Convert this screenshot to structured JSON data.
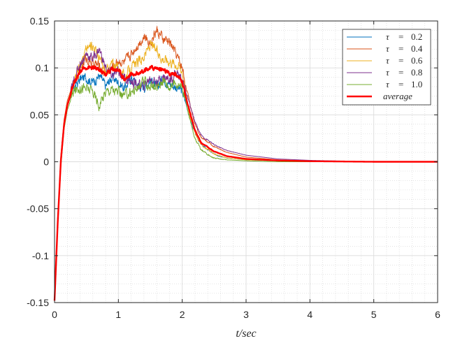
{
  "chart_data": {
    "type": "line",
    "title": "",
    "xlabel": "t/sec",
    "ylabel": "",
    "xlim": [
      0,
      6
    ],
    "ylim": [
      -0.15,
      0.15
    ],
    "xticks": [
      0,
      1,
      2,
      3,
      4,
      5,
      6
    ],
    "xtick_labels": [
      "0",
      "1",
      "2",
      "3",
      "4",
      "5",
      "6"
    ],
    "yticks": [
      -0.15,
      -0.1,
      -0.05,
      0,
      0.05,
      0.1,
      0.15
    ],
    "ytick_labels": [
      "-0.15",
      "-0.1",
      "-0.05",
      "0",
      "0.05",
      "0.1",
      "0.15"
    ],
    "grid": true,
    "minor_grid": true,
    "legend_position": "top-right",
    "legend_entries": [
      {
        "symbol": "τ",
        "equals": "=",
        "value": "0.2"
      },
      {
        "symbol": "τ",
        "equals": "=",
        "value": "0.4"
      },
      {
        "symbol": "τ",
        "equals": "=",
        "value": "0.6"
      },
      {
        "symbol": "τ",
        "equals": "=",
        "value": "0.8"
      },
      {
        "symbol": "τ",
        "equals": "=",
        "value": "1.0"
      },
      {
        "symbol": "",
        "equals": "",
        "value": "average"
      }
    ],
    "x": [
      0,
      0.05,
      0.1,
      0.15,
      0.2,
      0.3,
      0.4,
      0.5,
      0.6,
      0.7,
      0.8,
      0.9,
      1.0,
      1.1,
      1.2,
      1.3,
      1.4,
      1.5,
      1.6,
      1.7,
      1.8,
      1.9,
      2.0,
      2.1,
      2.2,
      2.3,
      2.5,
      2.7,
      3.0,
      3.5,
      4.0,
      5.0,
      6.0
    ],
    "series": [
      {
        "name": "τ = 0.2",
        "color": "#0072BD",
        "width": 1,
        "values": [
          -0.148,
          -0.06,
          0.005,
          0.04,
          0.06,
          0.078,
          0.088,
          0.09,
          0.085,
          0.092,
          0.08,
          0.09,
          0.085,
          0.078,
          0.09,
          0.082,
          0.08,
          0.088,
          0.078,
          0.09,
          0.083,
          0.08,
          0.075,
          0.052,
          0.03,
          0.018,
          0.008,
          0.004,
          0.002,
          0.001,
          0.0005,
          0.0,
          0.0
        ]
      },
      {
        "name": "τ = 0.4",
        "color": "#D95319",
        "width": 1,
        "values": [
          -0.148,
          -0.06,
          0.008,
          0.045,
          0.065,
          0.085,
          0.1,
          0.11,
          0.105,
          0.102,
          0.095,
          0.1,
          0.108,
          0.105,
          0.115,
          0.125,
          0.133,
          0.128,
          0.14,
          0.13,
          0.128,
          0.115,
          0.1,
          0.068,
          0.04,
          0.026,
          0.016,
          0.01,
          0.005,
          0.002,
          0.001,
          0.0,
          0.0
        ]
      },
      {
        "name": "τ = 0.6",
        "color": "#EDB120",
        "width": 1,
        "values": [
          -0.148,
          -0.065,
          0.0,
          0.04,
          0.06,
          0.085,
          0.105,
          0.12,
          0.125,
          0.11,
          0.095,
          0.105,
          0.1,
          0.09,
          0.1,
          0.105,
          0.112,
          0.125,
          0.118,
          0.11,
          0.108,
          0.105,
          0.098,
          0.055,
          0.03,
          0.018,
          0.008,
          0.004,
          0.002,
          0.001,
          0.0,
          0.0,
          0.0
        ]
      },
      {
        "name": "τ = 0.8",
        "color": "#7E2F8E",
        "width": 1,
        "values": [
          -0.148,
          -0.065,
          0.0,
          0.04,
          0.06,
          0.085,
          0.105,
          0.115,
          0.11,
          0.12,
          0.1,
          0.092,
          0.095,
          0.09,
          0.085,
          0.082,
          0.08,
          0.09,
          0.085,
          0.09,
          0.088,
          0.095,
          0.088,
          0.065,
          0.042,
          0.028,
          0.018,
          0.012,
          0.007,
          0.003,
          0.0015,
          0.0,
          0.0
        ]
      },
      {
        "name": "τ = 1.0",
        "color": "#77AC30",
        "width": 1,
        "values": [
          -0.148,
          -0.07,
          -0.005,
          0.035,
          0.055,
          0.075,
          0.08,
          0.078,
          0.075,
          0.06,
          0.075,
          0.078,
          0.073,
          0.07,
          0.075,
          0.078,
          0.085,
          0.08,
          0.078,
          0.088,
          0.08,
          0.085,
          0.08,
          0.05,
          0.025,
          0.012,
          0.004,
          0.002,
          0.001,
          0.0,
          0.0,
          0.0,
          0.0
        ]
      },
      {
        "name": "average",
        "color": "#FF0000",
        "width": 2.4,
        "values": [
          -0.148,
          -0.065,
          0.002,
          0.04,
          0.06,
          0.082,
          0.096,
          0.101,
          0.1,
          0.098,
          0.093,
          0.099,
          0.098,
          0.088,
          0.093,
          0.094,
          0.098,
          0.1,
          0.1,
          0.098,
          0.093,
          0.094,
          0.085,
          0.058,
          0.033,
          0.02,
          0.011,
          0.006,
          0.003,
          0.0014,
          0.0006,
          0.0,
          0.0
        ]
      }
    ]
  }
}
